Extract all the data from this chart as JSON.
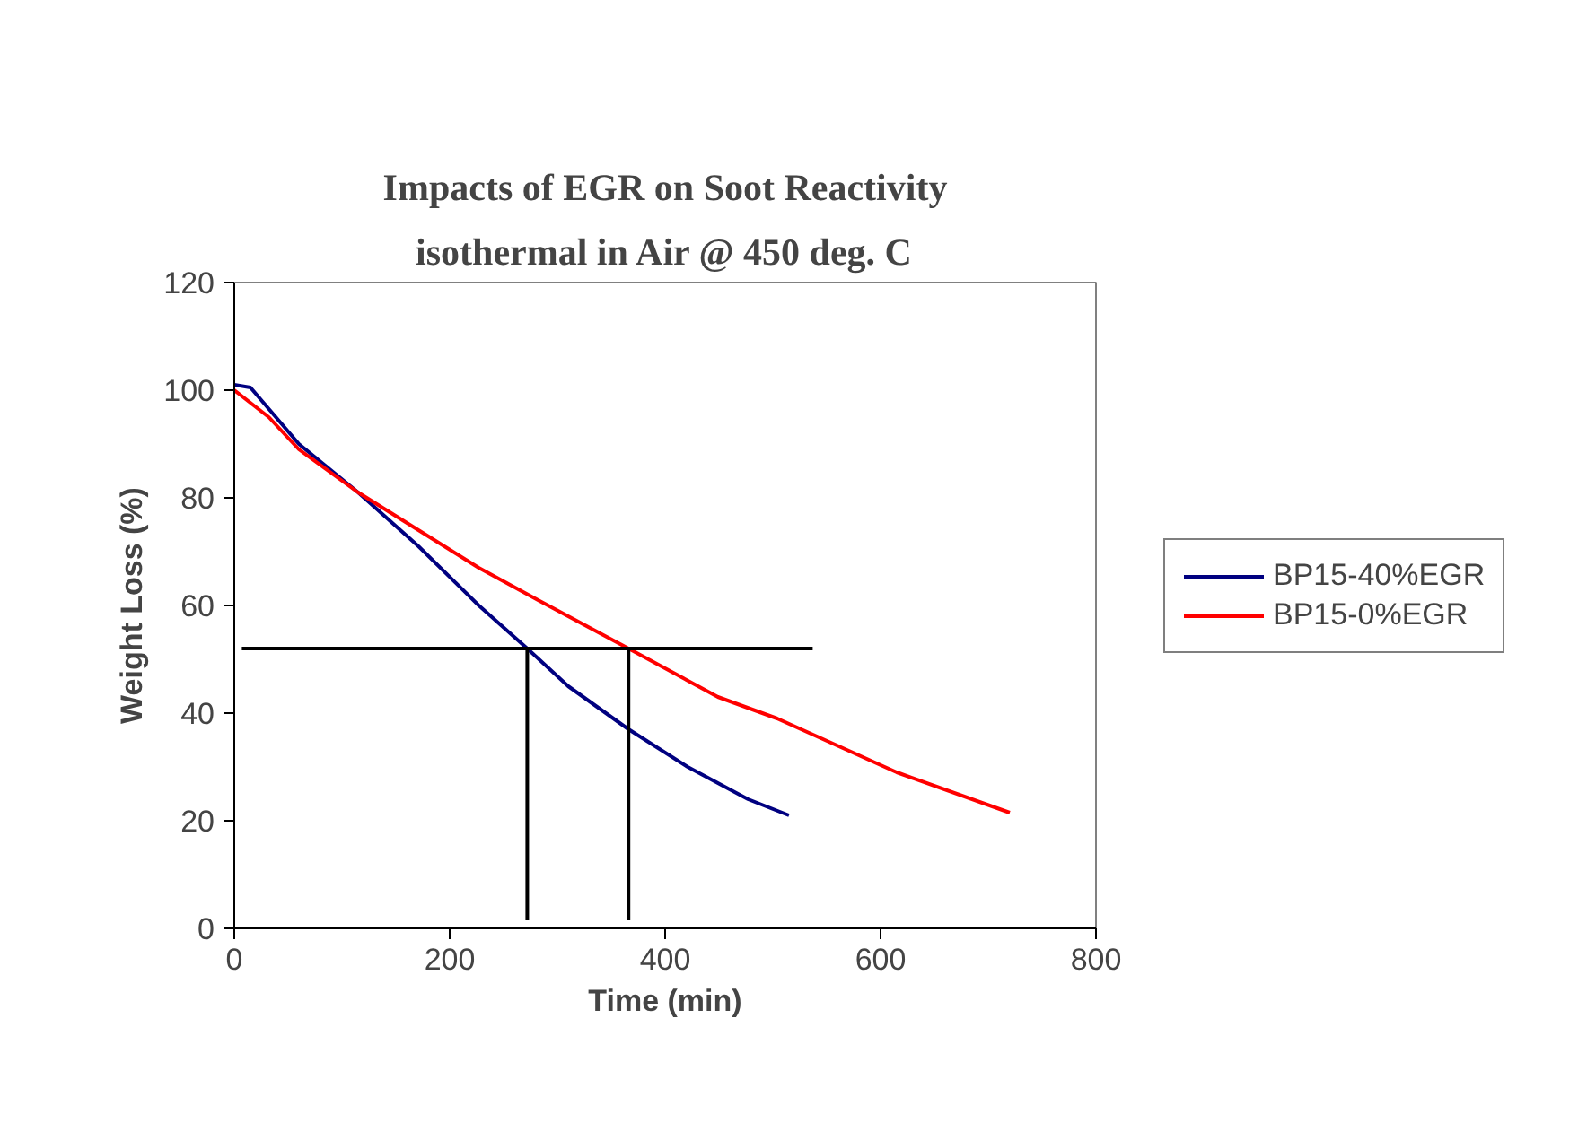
{
  "chart_data": {
    "type": "line",
    "title": "Impacts of EGR on Soot Reactivity",
    "subtitle": "isothermal in Air @ 450 deg. C",
    "xlabel": "Time (min)",
    "ylabel": "Weight Loss (%)",
    "xlim": [
      0,
      800
    ],
    "xticks": [
      0,
      200,
      400,
      600,
      800
    ],
    "ylim": [
      0,
      120
    ],
    "yticks": [
      0,
      20,
      40,
      60,
      80,
      100,
      120
    ],
    "grid": false,
    "legend": "right",
    "marker": "none",
    "line_style": "solid",
    "series": [
      {
        "name": "BP15-40%EGR",
        "color": "#000080",
        "x": [
          0,
          15,
          60,
          115,
          171,
          227,
          272,
          310,
          366,
          421,
          477,
          515
        ],
        "values": [
          101,
          100.5,
          90,
          81,
          71,
          60,
          52,
          45,
          37,
          30,
          24,
          21
        ]
      },
      {
        "name": "BP15-0%EGR",
        "color": "#ff0000",
        "x": [
          0,
          32,
          60,
          115,
          171,
          227,
          282,
          366,
          449,
          504,
          615,
          720
        ],
        "values": [
          100,
          95,
          89,
          81,
          74,
          67,
          61,
          52,
          43,
          39,
          29,
          21.5
        ]
      },
      {
        "color": "#000000",
        "x": [
          7,
          537
        ],
        "values": [
          52,
          52
        ]
      },
      {
        "color": "#000000",
        "x": [
          272,
          272
        ],
        "values": [
          1.5,
          52
        ]
      },
      {
        "color": "#000000",
        "x": [
          366,
          366
        ],
        "values": [
          1.5,
          52
        ]
      }
    ]
  }
}
